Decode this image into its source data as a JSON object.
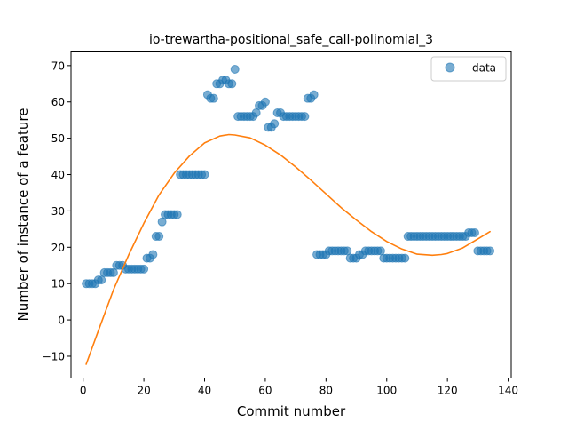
{
  "chart_data": {
    "type": "scatter",
    "title": "io-trewartha-positional_safe_call-polinomial_3",
    "xlabel": "Commit number",
    "ylabel": "Number of instance of a feature",
    "xlim": [
      -4,
      141
    ],
    "ylim": [
      -16,
      74
    ],
    "xticks": [
      0,
      20,
      40,
      60,
      80,
      100,
      120,
      140
    ],
    "yticks": [
      -10,
      0,
      10,
      20,
      30,
      40,
      50,
      60,
      70
    ],
    "legend": {
      "position": "top-right",
      "entries": [
        {
          "label": "data",
          "marker": "circle",
          "color": "#1f77b4"
        }
      ]
    },
    "series": [
      {
        "name": "data",
        "kind": "scatter",
        "color": "#1f77b4",
        "x": [
          1,
          2,
          3,
          4,
          5,
          6,
          7,
          8,
          9,
          10,
          11,
          12,
          13,
          14,
          15,
          16,
          17,
          18,
          19,
          20,
          21,
          22,
          23,
          24,
          25,
          26,
          27,
          28,
          29,
          30,
          31,
          32,
          33,
          34,
          35,
          36,
          37,
          38,
          39,
          40,
          41,
          42,
          43,
          44,
          45,
          46,
          47,
          48,
          49,
          50,
          51,
          52,
          53,
          54,
          55,
          56,
          57,
          58,
          59,
          60,
          61,
          62,
          63,
          64,
          65,
          66,
          67,
          68,
          69,
          70,
          71,
          72,
          73,
          74,
          75,
          76,
          77,
          78,
          79,
          80,
          81,
          82,
          83,
          84,
          85,
          86,
          87,
          88,
          89,
          90,
          91,
          92,
          93,
          94,
          95,
          96,
          97,
          98,
          99,
          100,
          101,
          102,
          103,
          104,
          105,
          106,
          107,
          108,
          109,
          110,
          111,
          112,
          113,
          114,
          115,
          116,
          117,
          118,
          119,
          120,
          121,
          122,
          123,
          124,
          125,
          126,
          127,
          128,
          129,
          130,
          131,
          132,
          133,
          134
        ],
        "y": [
          10,
          10,
          10,
          10,
          11,
          11,
          13,
          13,
          13,
          13,
          15,
          15,
          15,
          14,
          14,
          14,
          14,
          14,
          14,
          14,
          17,
          17,
          18,
          23,
          23,
          27,
          29,
          29,
          29,
          29,
          29,
          40,
          40,
          40,
          40,
          40,
          40,
          40,
          40,
          40,
          62,
          61,
          61,
          65,
          65,
          66,
          66,
          65,
          65,
          69,
          56,
          56,
          56,
          56,
          56,
          56,
          57,
          59,
          59,
          60,
          53,
          53,
          54,
          57,
          57,
          56,
          56,
          56,
          56,
          56,
          56,
          56,
          56,
          61,
          61,
          62,
          18,
          18,
          18,
          18,
          19,
          19,
          19,
          19,
          19,
          19,
          19,
          17,
          17,
          17,
          18,
          18,
          19,
          19,
          19,
          19,
          19,
          19,
          17,
          17,
          17,
          17,
          17,
          17,
          17,
          17,
          23,
          23,
          23,
          23,
          23,
          23,
          23,
          23,
          23,
          23,
          23,
          23,
          23,
          23,
          23,
          23,
          23,
          23,
          23,
          23,
          24,
          24,
          24,
          19,
          19,
          19,
          19,
          19
        ]
      },
      {
        "name": "fit",
        "kind": "line",
        "color": "#ff7f0e",
        "x": [
          1,
          5,
          10,
          15,
          20,
          25,
          30,
          35,
          40,
          45,
          48,
          50,
          55,
          60,
          65,
          70,
          75,
          80,
          85,
          90,
          95,
          100,
          105,
          110,
          115,
          118,
          120,
          125,
          130,
          134
        ],
        "y": [
          -12.2,
          -3.0,
          8.3,
          17.9,
          26.6,
          34.4,
          40.4,
          45.1,
          48.7,
          50.6,
          51.0,
          50.9,
          50.1,
          48.1,
          45.4,
          42.1,
          38.5,
          34.7,
          30.9,
          27.5,
          24.3,
          21.6,
          19.5,
          18.1,
          17.8,
          18.0,
          18.3,
          19.8,
          22.3,
          24.3
        ]
      }
    ]
  }
}
